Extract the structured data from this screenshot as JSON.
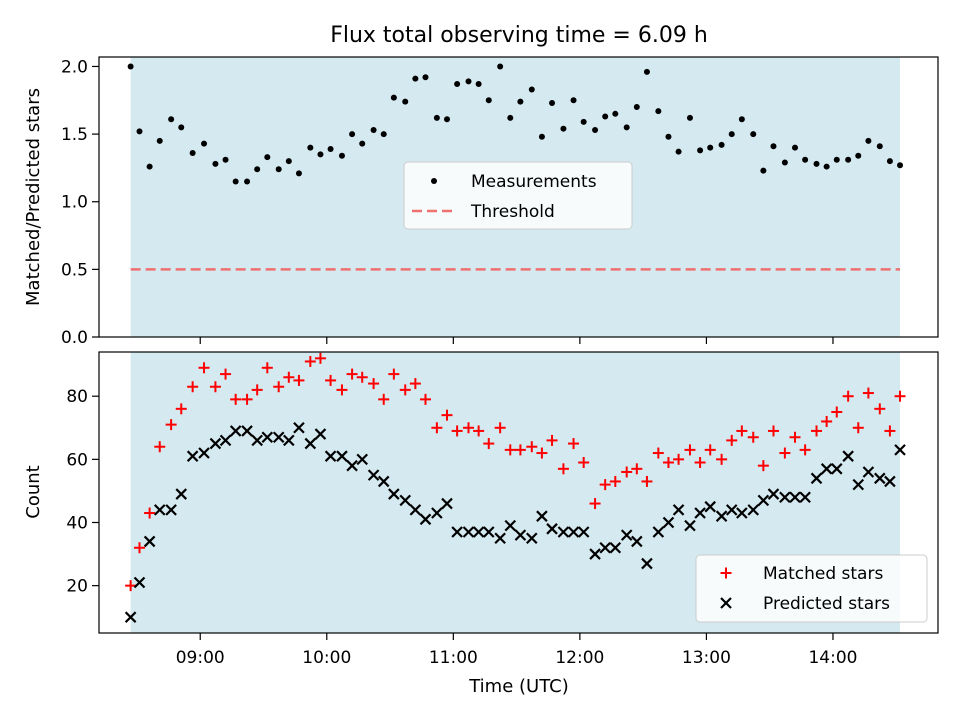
{
  "chart_data": {
    "title": "Flux total observing time = 6.09 h",
    "xlabel": "Time (UTC)",
    "x_unit": "hours UTC (decimal)",
    "xlim": [
      8.2,
      14.83
    ],
    "x_ticks": [
      9,
      10,
      11,
      12,
      13,
      14
    ],
    "x_tick_labels": [
      "09:00",
      "10:00",
      "11:00",
      "12:00",
      "13:00",
      "14:00"
    ],
    "observing_window": [
      8.45,
      14.53
    ],
    "colors": {
      "window": "#d4e9f0",
      "measurement": "#000000",
      "threshold": "#f07070",
      "matched": "#ff0000",
      "predicted": "#000000"
    },
    "panels": [
      {
        "type": "scatter",
        "ylabel": "Matched/Predicted stars",
        "ylim": [
          0,
          2.07
        ],
        "y_ticks": [
          0,
          0.5,
          1.0,
          1.5,
          2.0
        ],
        "y_tick_labels": [
          "0.0",
          "0.5",
          "1.0",
          "1.5",
          "2.0"
        ],
        "legend": {
          "placement": "center",
          "entries": [
            "Measurements",
            "Threshold"
          ]
        },
        "threshold": 0.5,
        "measurements": {
          "name": "Measurements",
          "x": [
            8.45,
            8.52,
            8.6,
            8.68,
            8.77,
            8.85,
            8.94,
            9.03,
            9.12,
            9.2,
            9.28,
            9.37,
            9.45,
            9.53,
            9.62,
            9.7,
            9.78,
            9.87,
            9.95,
            10.03,
            10.12,
            10.2,
            10.28,
            10.37,
            10.45,
            10.53,
            10.62,
            10.7,
            10.78,
            10.87,
            10.95,
            11.03,
            11.12,
            11.2,
            11.28,
            11.37,
            11.45,
            11.53,
            11.62,
            11.7,
            11.78,
            11.87,
            11.95,
            12.03,
            12.12,
            12.2,
            12.28,
            12.37,
            12.45,
            12.53,
            12.62,
            12.7,
            12.78,
            12.87,
            12.95,
            13.03,
            13.12,
            13.2,
            13.28,
            13.37,
            13.45,
            13.53,
            13.62,
            13.7,
            13.78,
            13.87,
            13.95,
            14.03,
            14.12,
            14.2,
            14.28,
            14.37,
            14.45,
            14.53
          ],
          "y": [
            2.0,
            1.52,
            1.26,
            1.45,
            1.61,
            1.55,
            1.36,
            1.43,
            1.28,
            1.31,
            1.15,
            1.15,
            1.24,
            1.33,
            1.24,
            1.3,
            1.21,
            1.4,
            1.35,
            1.39,
            1.34,
            1.5,
            1.43,
            1.53,
            1.5,
            1.77,
            1.74,
            1.91,
            1.92,
            1.62,
            1.61,
            1.87,
            1.89,
            1.87,
            1.75,
            2.0,
            1.62,
            1.74,
            1.83,
            1.48,
            1.73,
            1.54,
            1.75,
            1.59,
            1.53,
            1.63,
            1.65,
            1.55,
            1.7,
            1.96,
            1.67,
            1.48,
            1.37,
            1.62,
            1.38,
            1.4,
            1.42,
            1.5,
            1.61,
            1.5,
            1.23,
            1.41,
            1.29,
            1.4,
            1.31,
            1.28,
            1.26,
            1.31,
            1.31,
            1.34,
            1.45,
            1.41,
            1.3,
            1.27
          ]
        }
      },
      {
        "type": "scatter",
        "ylabel": "Count",
        "ylim": [
          5,
          94
        ],
        "y_ticks": [
          20,
          40,
          60,
          80
        ],
        "y_tick_labels": [
          "20",
          "40",
          "60",
          "80"
        ],
        "legend": {
          "placement": "lower right",
          "entries": [
            "Matched stars",
            "Predicted stars"
          ]
        },
        "series": [
          {
            "name": "Matched stars",
            "marker": "+",
            "x": [
              8.45,
              8.52,
              8.6,
              8.68,
              8.77,
              8.85,
              8.94,
              9.03,
              9.12,
              9.2,
              9.28,
              9.37,
              9.45,
              9.53,
              9.62,
              9.7,
              9.78,
              9.87,
              9.95,
              10.03,
              10.12,
              10.2,
              10.28,
              10.37,
              10.45,
              10.53,
              10.62,
              10.7,
              10.78,
              10.87,
              10.95,
              11.03,
              11.12,
              11.2,
              11.28,
              11.37,
              11.45,
              11.53,
              11.62,
              11.7,
              11.78,
              11.87,
              11.95,
              12.03,
              12.12,
              12.2,
              12.28,
              12.37,
              12.45,
              12.53,
              12.62,
              12.7,
              12.78,
              12.87,
              12.95,
              13.03,
              13.12,
              13.2,
              13.28,
              13.37,
              13.45,
              13.53,
              13.62,
              13.7,
              13.78,
              13.87,
              13.95,
              14.03,
              14.12,
              14.2,
              14.28,
              14.37,
              14.45,
              14.53
            ],
            "y": [
              20,
              32,
              43,
              64,
              71,
              76,
              83,
              89,
              83,
              87,
              79,
              79,
              82,
              89,
              83,
              86,
              85,
              91,
              92,
              85,
              82,
              87,
              86,
              84,
              79,
              87,
              82,
              84,
              79,
              70,
              74,
              69,
              70,
              69,
              65,
              70,
              63,
              63,
              64,
              62,
              66,
              57,
              65,
              59,
              46,
              52,
              53,
              56,
              57,
              53,
              62,
              59,
              60,
              63,
              59,
              63,
              60,
              66,
              69,
              67,
              58,
              69,
              62,
              67,
              63,
              69,
              72,
              75,
              80,
              70,
              81,
              76,
              69,
              80
            ]
          },
          {
            "name": "Predicted stars",
            "marker": "x",
            "x": [
              8.45,
              8.52,
              8.6,
              8.68,
              8.77,
              8.85,
              8.94,
              9.03,
              9.12,
              9.2,
              9.28,
              9.37,
              9.45,
              9.53,
              9.62,
              9.7,
              9.78,
              9.87,
              9.95,
              10.03,
              10.12,
              10.2,
              10.28,
              10.37,
              10.45,
              10.53,
              10.62,
              10.7,
              10.78,
              10.87,
              10.95,
              11.03,
              11.12,
              11.2,
              11.28,
              11.37,
              11.45,
              11.53,
              11.62,
              11.7,
              11.78,
              11.87,
              11.95,
              12.03,
              12.12,
              12.2,
              12.28,
              12.37,
              12.45,
              12.53,
              12.62,
              12.7,
              12.78,
              12.87,
              12.95,
              13.03,
              13.12,
              13.2,
              13.28,
              13.37,
              13.45,
              13.53,
              13.62,
              13.7,
              13.78,
              13.87,
              13.95,
              14.03,
              14.12,
              14.2,
              14.28,
              14.37,
              14.45,
              14.53
            ],
            "y": [
              10,
              21,
              34,
              44,
              44,
              49,
              61,
              62,
              65,
              66,
              69,
              69,
              66,
              67,
              67,
              66,
              70,
              65,
              68,
              61,
              61,
              58,
              60,
              55,
              53,
              49,
              47,
              44,
              41,
              43,
              46,
              37,
              37,
              37,
              37,
              35,
              39,
              36,
              35,
              42,
              38,
              37,
              37,
              37,
              30,
              32,
              32,
              36,
              34,
              27,
              37,
              40,
              44,
              39,
              43,
              45,
              42,
              44,
              43,
              44,
              47,
              49,
              48,
              48,
              48,
              54,
              57,
              57,
              61,
              52,
              56,
              54,
              53,
              63
            ]
          }
        ]
      }
    ]
  }
}
